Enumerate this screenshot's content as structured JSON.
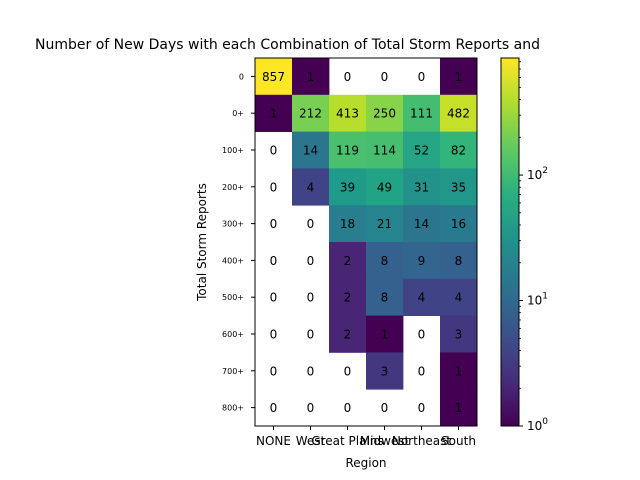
{
  "chart_data": {
    "type": "heatmap",
    "title": "Number of New Days with each Combination of Total Storm Reports and",
    "xlabel": "Region",
    "ylabel": "Total Storm Reports",
    "x_categories": [
      "NONE",
      "West",
      "Great Plains",
      "Midwest",
      "Northeast",
      "South"
    ],
    "y_categories": [
      "0",
      "0+",
      "100+",
      "200+",
      "300+",
      "400+",
      "500+",
      "600+",
      "700+",
      "800+"
    ],
    "values": [
      [
        857,
        1,
        0,
        0,
        0,
        1
      ],
      [
        1,
        212,
        413,
        250,
        111,
        482
      ],
      [
        0,
        14,
        119,
        114,
        52,
        82
      ],
      [
        0,
        4,
        39,
        49,
        31,
        35
      ],
      [
        0,
        0,
        18,
        21,
        14,
        16
      ],
      [
        0,
        0,
        2,
        8,
        9,
        8
      ],
      [
        0,
        0,
        2,
        8,
        4,
        4
      ],
      [
        0,
        0,
        2,
        1,
        0,
        3
      ],
      [
        0,
        0,
        0,
        3,
        0,
        1
      ],
      [
        0,
        0,
        0,
        0,
        0,
        1
      ]
    ],
    "color_scale": "log",
    "colormap": "viridis",
    "colorbar_range": [
      1,
      857
    ],
    "colorbar_ticks": [
      {
        "value": 1,
        "base": "10",
        "exp": "0"
      },
      {
        "value": 10,
        "base": "10",
        "exp": "1"
      },
      {
        "value": 100,
        "base": "10",
        "exp": "2"
      }
    ],
    "zero_cells": "blank",
    "grid": false,
    "legend": "colorbar-right"
  }
}
